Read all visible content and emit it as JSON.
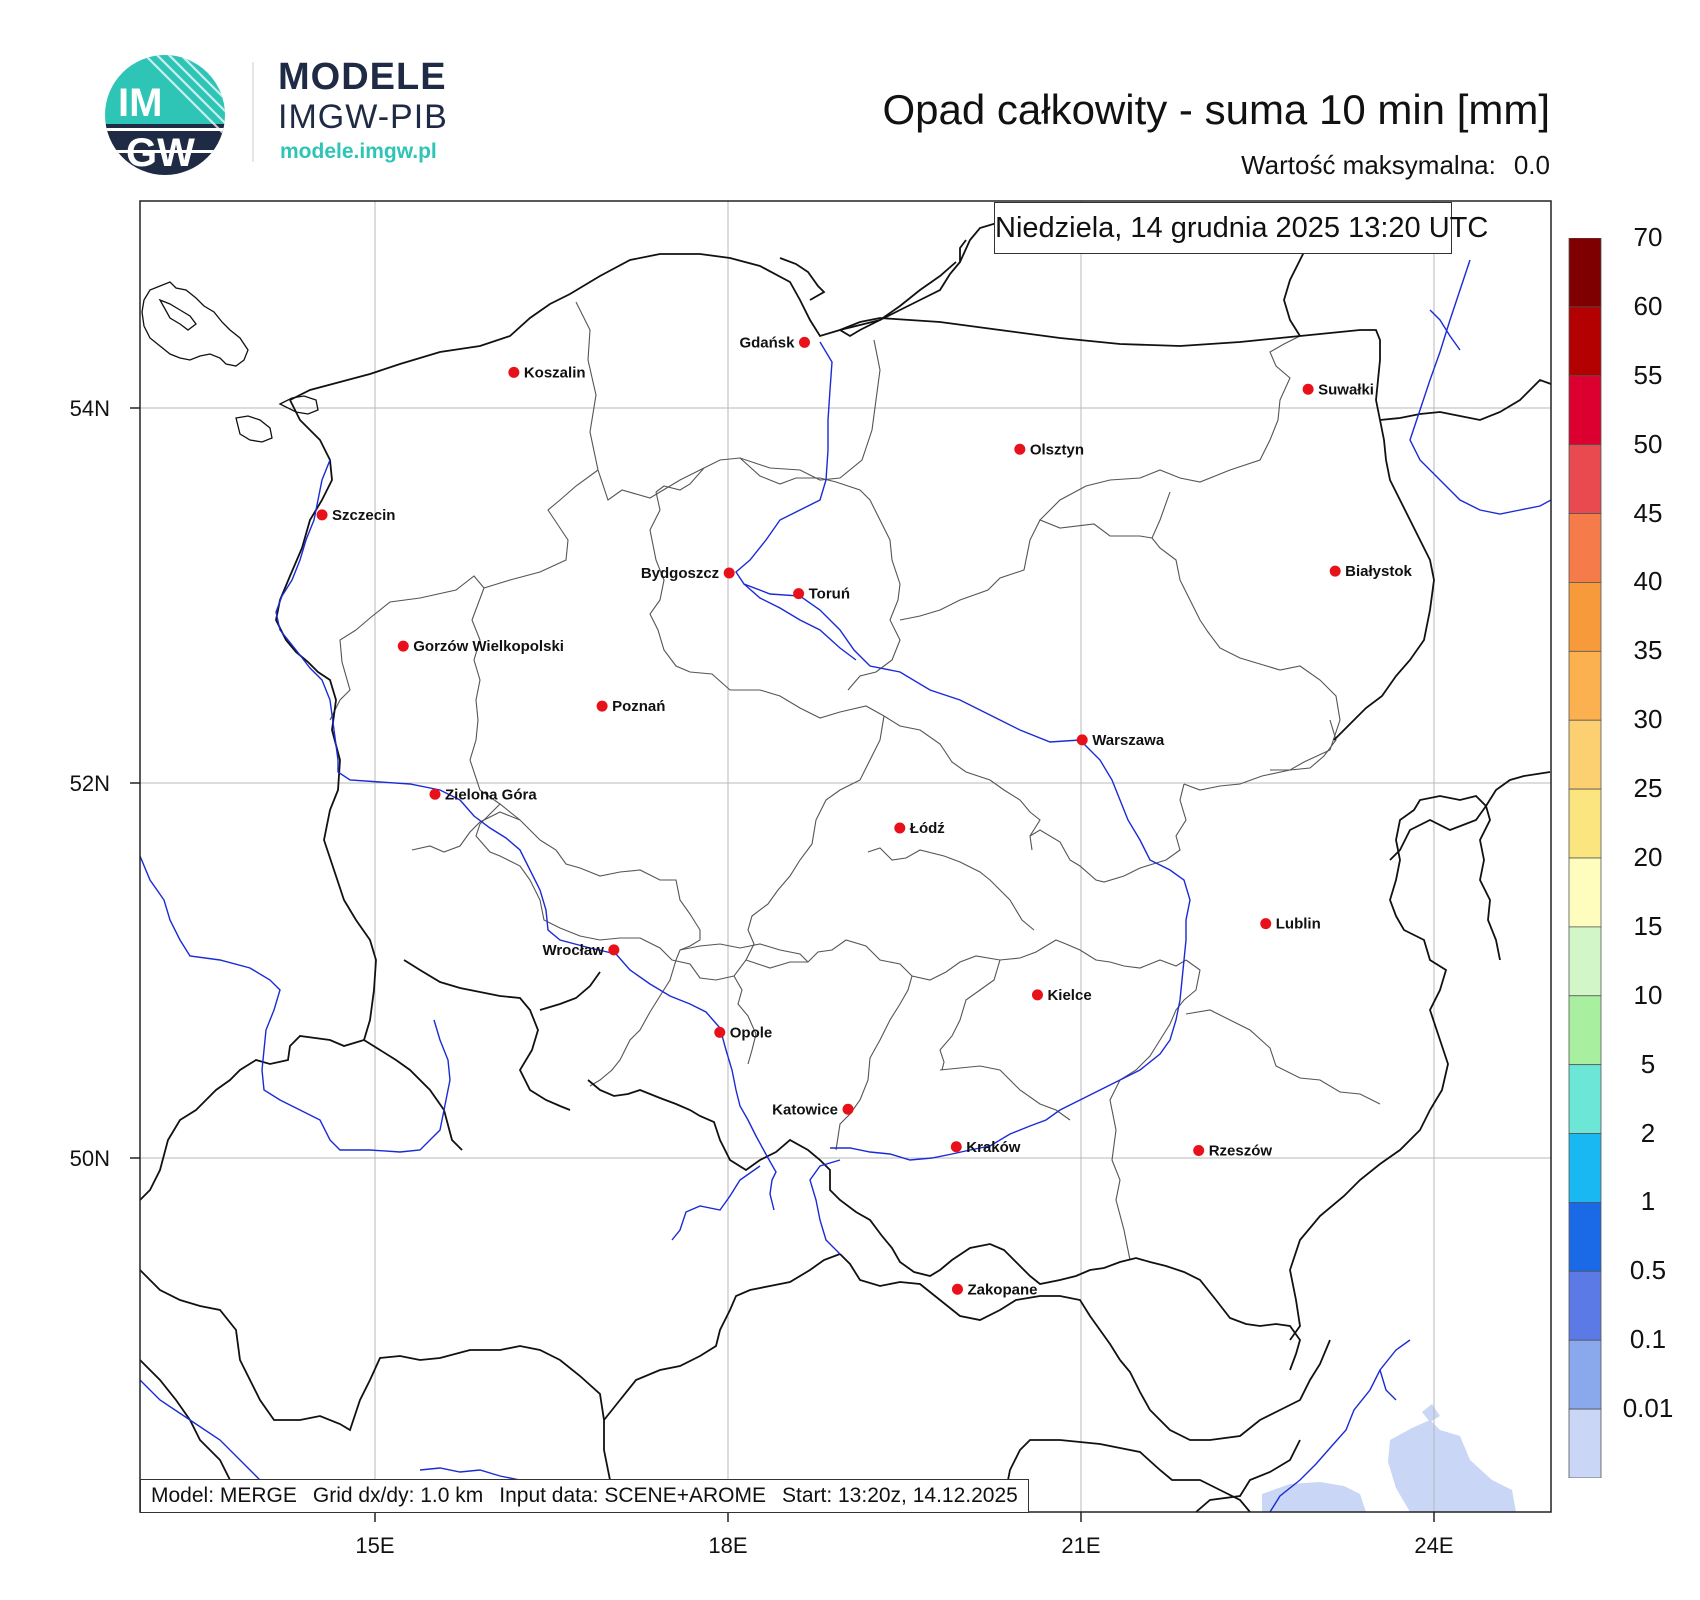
{
  "logo": {
    "mark_top": "IM",
    "mark_bottom": "GW",
    "title": "MODELE",
    "subtitle": "IMGW-PIB",
    "url": "modele.imgw.pl",
    "colors": {
      "teal": "#2ec4b6",
      "navy": "#1f2a44"
    }
  },
  "header": {
    "title": "Opad całkowity - suma 10 min [mm]",
    "max_label": "Wartość maksymalna:",
    "max_value": "0.0"
  },
  "map": {
    "date": "Niedziela, 14 grudnia 2025 13:20 UTC",
    "info": {
      "model": "Model: MERGE",
      "grid": "Grid dx/dy: 1.0 km",
      "input": "Input data: SCENE+AROME",
      "start": "Start: 13:20z, 14.12.2025"
    },
    "lon_ticks": [
      "15E",
      "18E",
      "21E",
      "24E"
    ],
    "lat_ticks": [
      "54N",
      "52N",
      "50N"
    ],
    "cities": [
      {
        "name": "Gdańsk",
        "lon": 18.65,
        "lat": 54.35
      },
      {
        "name": "Koszalin",
        "lon": 16.18,
        "lat": 54.19
      },
      {
        "name": "Suwałki",
        "lon": 22.93,
        "lat": 54.1
      },
      {
        "name": "Olsztyn",
        "lon": 20.48,
        "lat": 53.78
      },
      {
        "name": "Szczecin",
        "lon": 14.55,
        "lat": 53.43
      },
      {
        "name": "Białystok",
        "lon": 23.16,
        "lat": 53.13
      },
      {
        "name": "Bydgoszcz",
        "lon": 18.01,
        "lat": 53.12
      },
      {
        "name": "Toruń",
        "lon": 18.6,
        "lat": 53.01
      },
      {
        "name": "Gorzów Wielkopolski",
        "lon": 15.24,
        "lat": 52.73
      },
      {
        "name": "Poznań",
        "lon": 16.93,
        "lat": 52.41
      },
      {
        "name": "Warszawa",
        "lon": 21.01,
        "lat": 52.23
      },
      {
        "name": "Zielona Góra",
        "lon": 15.51,
        "lat": 51.94
      },
      {
        "name": "Łódź",
        "lon": 19.46,
        "lat": 51.76
      },
      {
        "name": "Lublin",
        "lon": 22.57,
        "lat": 51.25
      },
      {
        "name": "Wrocław",
        "lon": 17.03,
        "lat": 51.11
      },
      {
        "name": "Kielce",
        "lon": 20.63,
        "lat": 50.87
      },
      {
        "name": "Opole",
        "lon": 17.93,
        "lat": 50.67
      },
      {
        "name": "Katowice",
        "lon": 19.02,
        "lat": 50.26
      },
      {
        "name": "Rzeszów",
        "lon": 22.0,
        "lat": 50.04
      },
      {
        "name": "Kraków",
        "lon": 19.94,
        "lat": 50.06
      },
      {
        "name": "Zakopane",
        "lon": 19.95,
        "lat": 49.3
      }
    ]
  },
  "colorbar": {
    "labels": [
      "70",
      "60",
      "55",
      "50",
      "45",
      "40",
      "35",
      "30",
      "25",
      "20",
      "15",
      "10",
      "5",
      "2",
      "1",
      "0.5",
      "0.1",
      "0.01"
    ],
    "colors": [
      "#7e0000",
      "#b30000",
      "#dc0030",
      "#e84a50",
      "#f57b4a",
      "#f79a3c",
      "#fbb14f",
      "#fcd070",
      "#fbe57e",
      "#fefdbe",
      "#d2f6c8",
      "#a8f0a0",
      "#6ce6d6",
      "#19b8f2",
      "#1a6ae8",
      "#5c7ae6",
      "#8aa8ec",
      "#c9d6f5"
    ]
  }
}
